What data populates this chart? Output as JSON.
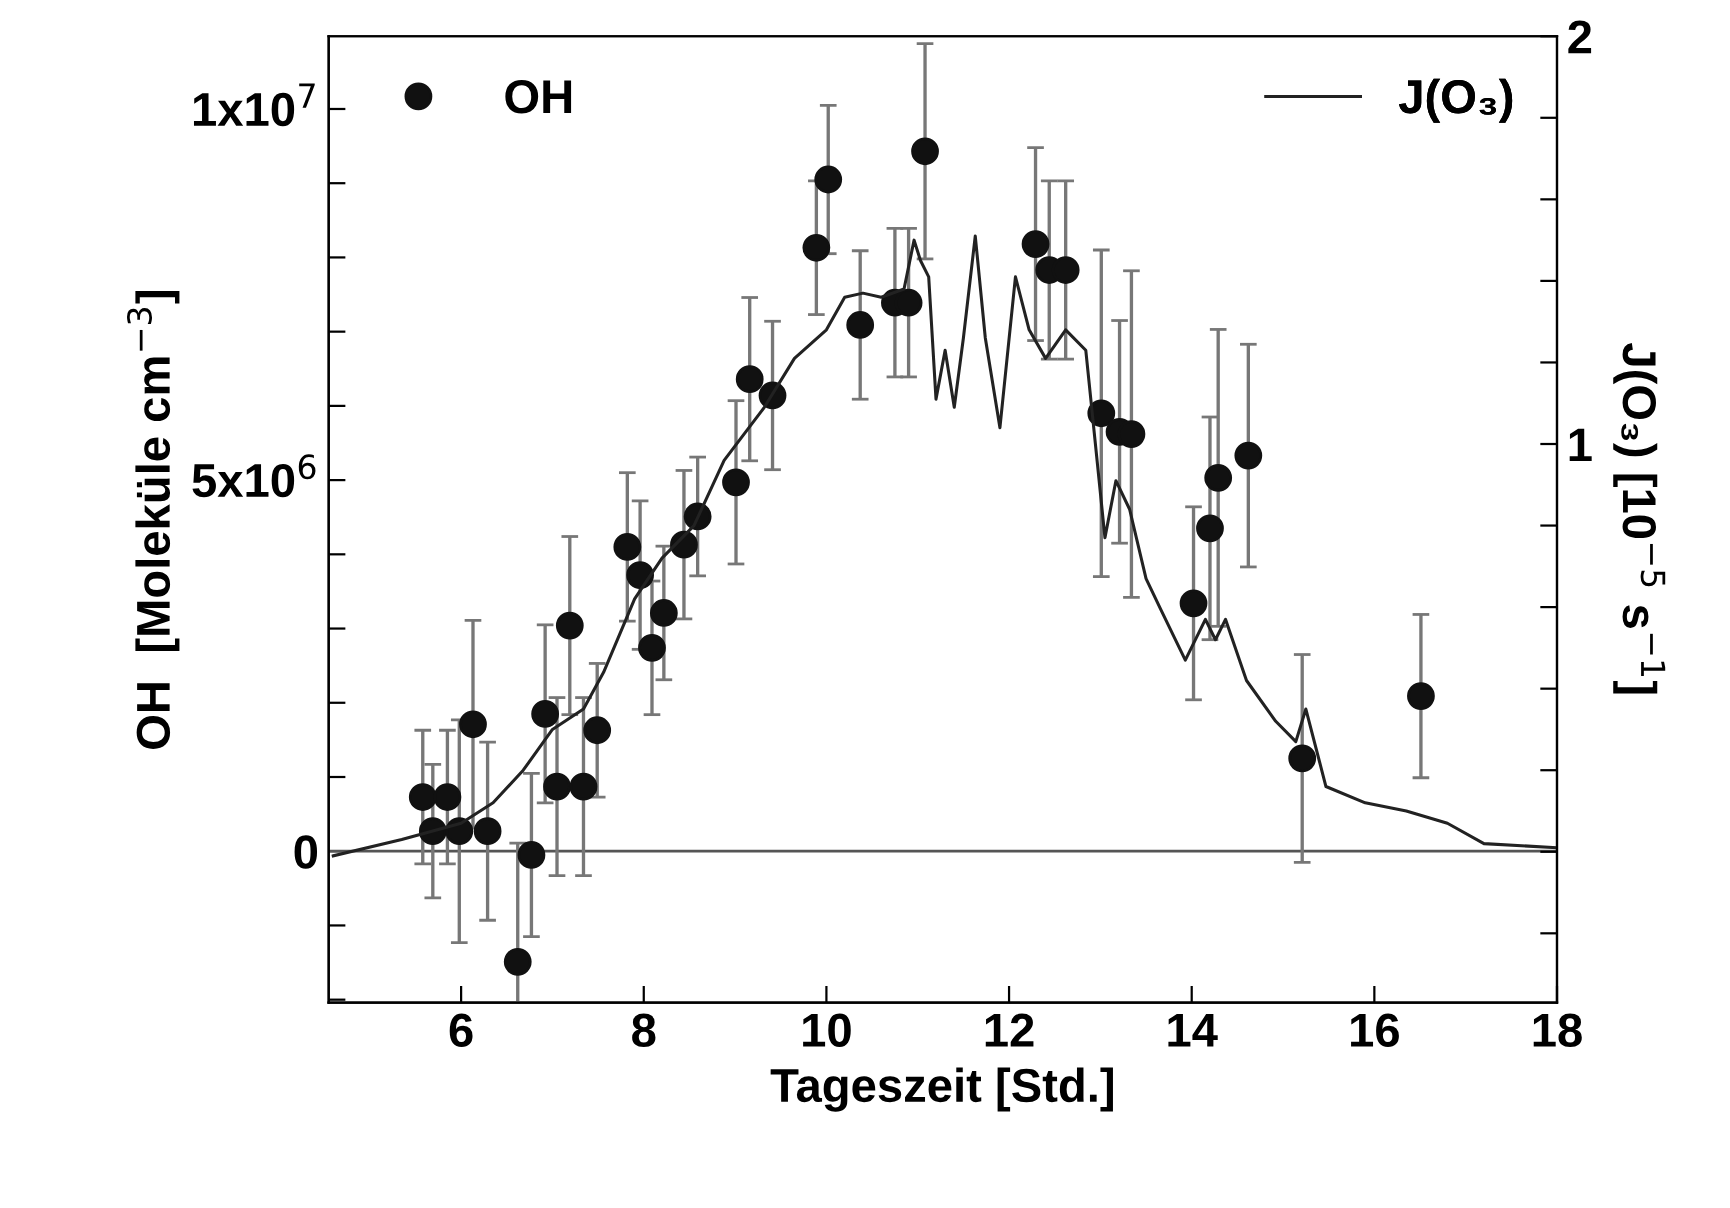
{
  "chart_data": {
    "type": "scatter",
    "xlabel": "Tageszeit [Std.]",
    "ylabel": "OH  [Moleküle cm$^{−3}$]",
    "y2label": "J(O₃) [10$^{−5}$ s$^{−1}$]",
    "xlim": [
      4.55,
      18
    ],
    "xticks": [
      6,
      8,
      10,
      12,
      14,
      16,
      18
    ],
    "ylim": [
      -2040000,
      10980000
    ],
    "yticks": [
      {
        "value": -2000000,
        "label": null
      },
      {
        "value": -1000000,
        "label": null
      },
      0,
      {
        "value": 1000000,
        "label": null
      },
      {
        "value": 2000000,
        "label": null
      },
      {
        "value": 3000000,
        "label": null
      },
      {
        "value": 4000000,
        "label": null
      },
      {
        "value": 5000000,
        "label": "5x10$^{6}$"
      },
      {
        "value": 6000000,
        "label": null
      },
      {
        "value": 7000000,
        "label": null
      },
      {
        "value": 8000000,
        "label": null
      },
      {
        "value": 9000000,
        "label": null
      },
      {
        "value": 10000000,
        "label": "1x10$^{7}$"
      }
    ],
    "y2lim": [
      -0.37,
      2
    ],
    "y2ticks": [
      {
        "value": -0.2,
        "label": null
      },
      {
        "value": 0,
        "label": null
      },
      {
        "value": 0.2,
        "label": null
      },
      {
        "value": 0.4,
        "label": null
      },
      {
        "value": 0.6,
        "label": null
      },
      {
        "value": 0.8,
        "label": null
      },
      1,
      {
        "value": 1.2,
        "label": null
      },
      {
        "value": 1.4,
        "label": null
      },
      {
        "value": 1.6,
        "label": null
      },
      {
        "value": 1.8,
        "label": null
      },
      2
    ],
    "ref_lines": [
      {
        "axis": "y",
        "value": 0,
        "label": null,
        "color": "#555555"
      }
    ],
    "grid": false,
    "legend": "top",
    "series": [
      {
        "name": "OH",
        "color": "#111111",
        "marker": "circle",
        "x": [
          5.58,
          5.69,
          5.85,
          5.98,
          6.13,
          6.29,
          6.62,
          6.77,
          6.92,
          7.05,
          7.19,
          7.34,
          7.49,
          7.82,
          7.96,
          8.09,
          8.22,
          8.44,
          8.59,
          9.01,
          9.16,
          9.41,
          9.89,
          10.02,
          10.37,
          10.75,
          10.9,
          11.08,
          12.29,
          12.44,
          12.62,
          13.01,
          13.21,
          13.34,
          14.02,
          14.2,
          14.29,
          14.62,
          15.21,
          16.51
        ],
        "values": [
          730000,
          270000,
          730000,
          270000,
          1710000,
          270000,
          -1490000,
          -50000,
          1850000,
          870000,
          3040000,
          870000,
          1630000,
          4100000,
          3720000,
          2740000,
          3210000,
          4130000,
          4510000,
          4970000,
          6360000,
          6140000,
          8130000,
          9050000,
          7090000,
          7390000,
          7390000,
          9430000,
          8180000,
          7830000,
          7830000,
          5900000,
          5650000,
          5620000,
          3340000,
          4350000,
          5030000,
          5330000,
          1250000,
          2090000
        ],
        "errors": [
          900000,
          900000,
          900000,
          1500000,
          1400000,
          1200000,
          1600000,
          1100000,
          1200000,
          1200000,
          1200000,
          1200000,
          900000,
          1000000,
          1000000,
          900000,
          900000,
          1000000,
          800000,
          1100000,
          1100000,
          1000000,
          900000,
          1000000,
          1000000,
          1000000,
          1000000,
          1450000,
          1300000,
          1200000,
          1200000,
          2200000,
          1500000,
          2200000,
          1300000,
          1500000,
          2000000,
          1500000,
          1400000,
          1100000
        ]
      },
      {
        "name": "J(O₃)",
        "type": "line",
        "axis": "y2",
        "color": "#222222",
        "marker": "none",
        "line_style": "solid",
        "x": [
          4.6,
          5.35,
          6.0,
          6.35,
          6.68,
          7.0,
          7.34,
          7.56,
          7.9,
          8.2,
          8.55,
          8.88,
          9.32,
          9.65,
          10.0,
          10.2,
          10.4,
          10.6,
          10.85,
          10.96,
          11.03,
          11.12,
          11.2,
          11.3,
          11.4,
          11.5,
          11.63,
          11.74,
          11.9,
          12.07,
          12.22,
          12.4,
          12.62,
          12.84,
          12.95,
          13.05,
          13.17,
          13.32,
          13.5,
          13.67,
          13.93,
          14.15,
          14.26,
          14.37,
          14.6,
          14.92,
          15.14,
          15.25,
          15.47,
          15.9,
          16.35,
          16.8,
          17.2,
          18.0
        ],
        "values": [
          -0.01,
          0.03,
          0.07,
          0.12,
          0.2,
          0.3,
          0.35,
          0.44,
          0.62,
          0.72,
          0.8,
          0.96,
          1.09,
          1.21,
          1.28,
          1.36,
          1.37,
          1.36,
          1.38,
          1.5,
          1.45,
          1.41,
          1.11,
          1.23,
          1.09,
          1.26,
          1.51,
          1.26,
          1.04,
          1.41,
          1.28,
          1.21,
          1.28,
          1.23,
          0.99,
          0.77,
          0.91,
          0.84,
          0.67,
          0.59,
          0.47,
          0.57,
          0.52,
          0.57,
          0.42,
          0.32,
          0.27,
          0.35,
          0.16,
          0.12,
          0.1,
          0.07,
          0.02,
          0.01
        ]
      }
    ]
  }
}
